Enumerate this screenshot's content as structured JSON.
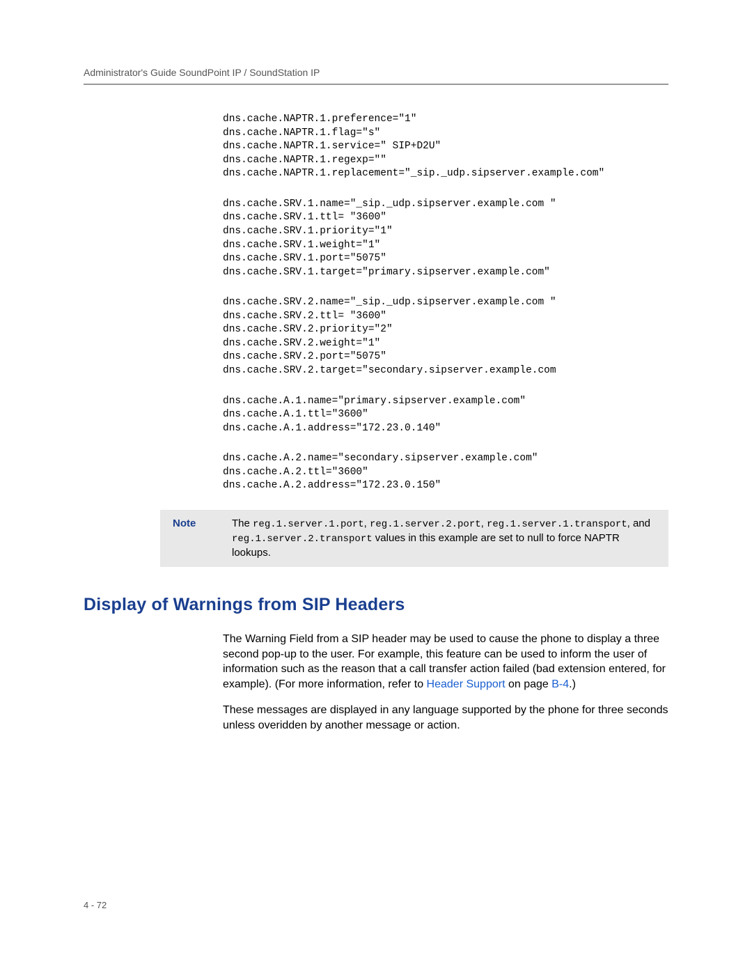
{
  "header": "Administrator's Guide SoundPoint IP / SoundStation IP",
  "config": {
    "block1": "dns.cache.NAPTR.1.preference=\"1\"\ndns.cache.NAPTR.1.flag=\"s\"\ndns.cache.NAPTR.1.service=\" SIP+D2U\"\ndns.cache.NAPTR.1.regexp=\"\"\ndns.cache.NAPTR.1.replacement=\"_sip._udp.sipserver.example.com\"",
    "block2": "dns.cache.SRV.1.name=\"_sip._udp.sipserver.example.com \"\ndns.cache.SRV.1.ttl= \"3600\"\ndns.cache.SRV.1.priority=\"1\"\ndns.cache.SRV.1.weight=\"1\"\ndns.cache.SRV.1.port=\"5075\"\ndns.cache.SRV.1.target=\"primary.sipserver.example.com\"",
    "block3": "dns.cache.SRV.2.name=\"_sip._udp.sipserver.example.com \"\ndns.cache.SRV.2.ttl= \"3600\"\ndns.cache.SRV.2.priority=\"2\"\ndns.cache.SRV.2.weight=\"1\"\ndns.cache.SRV.2.port=\"5075\"\ndns.cache.SRV.2.target=\"secondary.sipserver.example.com",
    "block4": "dns.cache.A.1.name=\"primary.sipserver.example.com\"\ndns.cache.A.1.ttl=\"3600\"\ndns.cache.A.1.address=\"172.23.0.140\"",
    "block5": "dns.cache.A.2.name=\"secondary.sipserver.example.com\"\ndns.cache.A.2.ttl=\"3600\"\ndns.cache.A.2.address=\"172.23.0.150\""
  },
  "note": {
    "label": "Note",
    "pre": "The ",
    "code1": "reg.1.server.1.port",
    "sep1": ", ",
    "code2": "reg.1.server.2.port",
    "sep2": ", ",
    "code3": "reg.1.server.1.transport",
    "sep3": ", and ",
    "code4": "reg.1.server.2.transport",
    "post": " values in this example are set to null to force NAPTR lookups."
  },
  "section_heading": "Display of Warnings from SIP Headers",
  "para1_a": "The Warning Field from a SIP header may be used to cause the phone to display a three second  pop-up  to the   user. For example, this feature can be used to inform the user of information   such as the reason that a call transfer action failed (bad extension entered, for example). (For more information, refer to ",
  "para1_link": "Header Support",
  "para1_b": " on page ",
  "para1_pageref": "B-4",
  "para1_c": ".)",
  "para2": "These messages are displayed in any language supported by the phone for three seconds unless overidden by another message or action.",
  "page_number": "4 - 72"
}
